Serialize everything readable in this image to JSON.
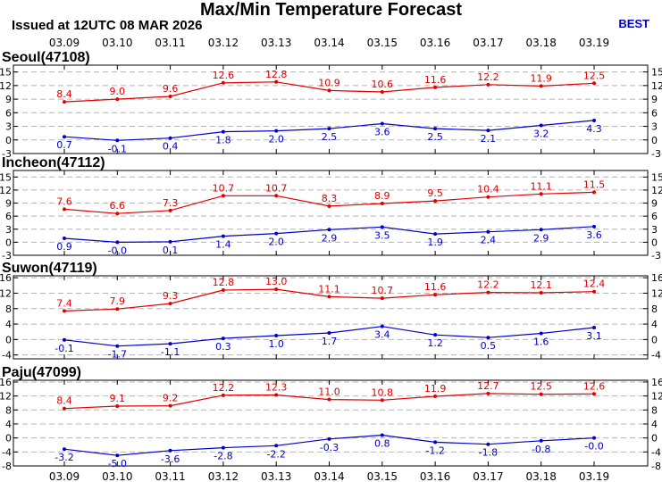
{
  "header": {
    "title": "Max/Min Temperature Forecast",
    "issued": "Issued at 12UTC 08 MAR 2026",
    "model": "BEST"
  },
  "colors": {
    "max": "#e00000",
    "min": "#0000cc",
    "grid": "#b4b4b4"
  },
  "chart_data": [
    {
      "type": "line",
      "title": "Seoul(47108)",
      "x": [
        "03.09",
        "03.10",
        "03.11",
        "03.12",
        "03.13",
        "03.14",
        "03.15",
        "03.16",
        "03.17",
        "03.18",
        "03.19"
      ],
      "ylim": [
        -3,
        16.5
      ],
      "yticks": [
        -3,
        0,
        3,
        6,
        9,
        12,
        15
      ],
      "grid": true,
      "series": [
        {
          "values": [
            8.4,
            9.0,
            9.6,
            12.6,
            12.8,
            10.9,
            10.6,
            11.6,
            12.2,
            11.9,
            12.5
          ],
          "color": "#e00000",
          "labels": [
            "8.4",
            "9.0",
            "9.6",
            "12.6",
            "12.8",
            "10.9",
            "10.6",
            "11.6",
            "12.2",
            "11.9",
            "12.5"
          ]
        },
        {
          "values": [
            0.7,
            -0.1,
            0.4,
            1.8,
            2.0,
            2.5,
            3.6,
            2.5,
            2.1,
            3.2,
            4.3
          ],
          "color": "#0000cc",
          "labels": [
            "0.7",
            "-0.1",
            "0.4",
            "1.8",
            "2.0",
            "2.5",
            "3.6",
            "2.5",
            "2.1",
            "3.2",
            "4.3"
          ]
        }
      ]
    },
    {
      "type": "line",
      "title": "Incheon(47112)",
      "x": [
        "03.09",
        "03.10",
        "03.11",
        "03.12",
        "03.13",
        "03.14",
        "03.15",
        "03.16",
        "03.17",
        "03.18",
        "03.19"
      ],
      "ylim": [
        -3,
        16.5
      ],
      "yticks": [
        -3,
        0,
        3,
        6,
        9,
        12,
        15
      ],
      "grid": true,
      "series": [
        {
          "values": [
            7.6,
            6.6,
            7.3,
            10.7,
            10.7,
            8.3,
            8.9,
            9.5,
            10.4,
            11.1,
            11.5
          ],
          "color": "#e00000",
          "labels": [
            "7.6",
            "6.6",
            "7.3",
            "10.7",
            "10.7",
            "8.3",
            "8.9",
            "9.5",
            "10.4",
            "11.1",
            "11.5"
          ]
        },
        {
          "values": [
            0.9,
            -0.0,
            0.1,
            1.4,
            2.0,
            2.9,
            3.5,
            1.9,
            2.4,
            2.9,
            3.6
          ],
          "color": "#0000cc",
          "labels": [
            "0.9",
            "-0.0",
            "0.1",
            "1.4",
            "2.0",
            "2.9",
            "3.5",
            "1.9",
            "2.4",
            "2.9",
            "3.6"
          ]
        }
      ]
    },
    {
      "type": "line",
      "title": "Suwon(47119)",
      "x": [
        "03.09",
        "03.10",
        "03.11",
        "03.12",
        "03.13",
        "03.14",
        "03.15",
        "03.16",
        "03.17",
        "03.18",
        "03.19"
      ],
      "ylim": [
        -5,
        16.5
      ],
      "yticks": [
        -4,
        0,
        4,
        8,
        12,
        16
      ],
      "grid": true,
      "series": [
        {
          "values": [
            7.4,
            7.9,
            9.3,
            12.8,
            13.0,
            11.1,
            10.7,
            11.6,
            12.2,
            12.1,
            12.4
          ],
          "color": "#e00000",
          "labels": [
            "7.4",
            "7.9",
            "9.3",
            "12.8",
            "13.0",
            "11.1",
            "10.7",
            "11.6",
            "12.2",
            "12.1",
            "12.4"
          ]
        },
        {
          "values": [
            -0.1,
            -1.7,
            -1.1,
            0.3,
            1.0,
            1.7,
            3.4,
            1.2,
            0.5,
            1.6,
            3.1
          ],
          "color": "#0000cc",
          "labels": [
            "-0.1",
            "-1.7",
            "-1.1",
            "0.3",
            "1.0",
            "1.7",
            "3.4",
            "1.2",
            "0.5",
            "1.6",
            "3.1"
          ]
        }
      ]
    },
    {
      "type": "line",
      "title": "Paju(47099)",
      "x": [
        "03.09",
        "03.10",
        "03.11",
        "03.12",
        "03.13",
        "03.14",
        "03.15",
        "03.16",
        "03.17",
        "03.18",
        "03.19"
      ],
      "ylim": [
        -8,
        16.5
      ],
      "yticks": [
        -8,
        -4,
        0,
        4,
        8,
        12,
        16
      ],
      "grid": true,
      "series": [
        {
          "values": [
            8.4,
            9.1,
            9.2,
            12.2,
            12.3,
            11.0,
            10.8,
            11.9,
            12.7,
            12.5,
            12.6
          ],
          "color": "#e00000",
          "labels": [
            "8.4",
            "9.1",
            "9.2",
            "12.2",
            "12.3",
            "11.0",
            "10.8",
            "11.9",
            "12.7",
            "12.5",
            "12.6"
          ]
        },
        {
          "values": [
            -3.2,
            -5.0,
            -3.6,
            -2.8,
            -2.2,
            -0.3,
            0.8,
            -1.2,
            -1.8,
            -0.8,
            -0.0
          ],
          "color": "#0000cc",
          "labels": [
            "-3.2",
            "-5.0",
            "-3.6",
            "-2.8",
            "-2.2",
            "-0.3",
            "0.8",
            "-1.2",
            "-1.8",
            "-0.8",
            "-0.0"
          ]
        }
      ]
    }
  ]
}
